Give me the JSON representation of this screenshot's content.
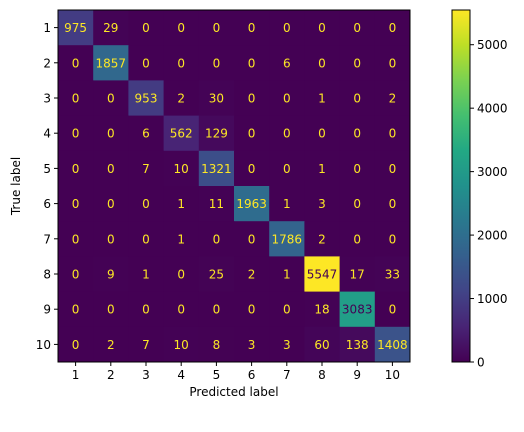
{
  "chart_data": {
    "type": "heatmap",
    "title": "",
    "xlabel": "Predicted label",
    "ylabel": "True label",
    "x_categories": [
      "1",
      "2",
      "3",
      "4",
      "5",
      "6",
      "7",
      "8",
      "9",
      "10"
    ],
    "y_categories": [
      "1",
      "2",
      "3",
      "4",
      "5",
      "6",
      "7",
      "8",
      "9",
      "10"
    ],
    "matrix": [
      [
        975,
        29,
        0,
        0,
        0,
        0,
        0,
        0,
        0,
        0
      ],
      [
        0,
        1857,
        0,
        0,
        0,
        0,
        6,
        0,
        0,
        0
      ],
      [
        0,
        0,
        953,
        2,
        30,
        0,
        0,
        1,
        0,
        2
      ],
      [
        0,
        0,
        6,
        562,
        129,
        0,
        0,
        0,
        0,
        0
      ],
      [
        0,
        0,
        7,
        10,
        1321,
        0,
        0,
        1,
        0,
        0
      ],
      [
        0,
        0,
        0,
        1,
        11,
        1963,
        1,
        3,
        0,
        0
      ],
      [
        0,
        0,
        0,
        1,
        0,
        0,
        1786,
        2,
        0,
        0
      ],
      [
        0,
        9,
        1,
        0,
        25,
        2,
        1,
        5547,
        17,
        33
      ],
      [
        0,
        0,
        0,
        0,
        0,
        0,
        0,
        18,
        3083,
        0
      ],
      [
        0,
        2,
        7,
        10,
        8,
        3,
        3,
        60,
        138,
        1408
      ]
    ],
    "colormap": "viridis",
    "colorbar": {
      "range": [
        0,
        5547
      ],
      "ticks": [
        0,
        1000,
        2000,
        3000,
        4000,
        5000
      ]
    },
    "text_color_dark_cells": "#fde725",
    "text_color_bright_cells": "#440154"
  }
}
